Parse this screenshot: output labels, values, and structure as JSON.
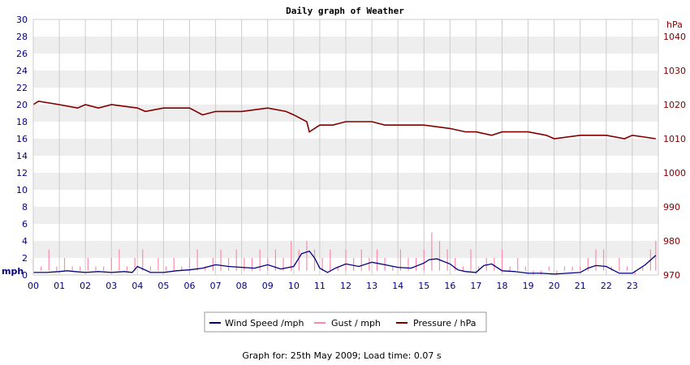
{
  "chart_data": {
    "type": "line",
    "title": "Daily graph of Weather",
    "footer": "Graph for: 25th May 2009; Load time: 0.07 s",
    "left_axis": {
      "unit": "mph",
      "min": 0,
      "max": 30,
      "ticks": [
        "0",
        "2",
        "4",
        "6",
        "8",
        "10",
        "12",
        "14",
        "16",
        "18",
        "20",
        "22",
        "24",
        "26",
        "28",
        "30"
      ]
    },
    "right_axis": {
      "unit": "hPa",
      "min": 970,
      "max": 1045,
      "ticks": [
        "970",
        "980",
        "990",
        "1000",
        "1010",
        "1020",
        "1030",
        "1040"
      ]
    },
    "x_ticks": [
      "00",
      "01",
      "02",
      "03",
      "04",
      "05",
      "06",
      "07",
      "08",
      "09",
      "10",
      "11",
      "12",
      "13",
      "14",
      "15",
      "16",
      "17",
      "18",
      "19",
      "20",
      "21",
      "22",
      "23"
    ],
    "x_range": [
      0,
      24
    ],
    "grid": true,
    "legend_position": "bottom",
    "series": [
      {
        "name": "Wind Speed /mph",
        "color": "#000080",
        "axis": "left",
        "x": [
          0,
          0.5,
          1,
          1.3,
          1.6,
          2,
          2.5,
          3,
          3.5,
          3.8,
          4,
          4.5,
          5,
          5.5,
          6,
          6.5,
          7,
          7.5,
          8,
          8.5,
          9,
          9.5,
          10,
          10.3,
          10.6,
          10.8,
          11,
          11.3,
          11.6,
          12,
          12.5,
          13,
          13.5,
          14,
          14.5,
          15,
          15.2,
          15.5,
          16,
          16.3,
          16.6,
          17,
          17.3,
          17.6,
          18,
          18.5,
          19,
          19.5,
          20,
          20.5,
          21,
          21.3,
          21.6,
          22,
          22.5,
          23,
          23.5,
          23.9
        ],
        "values": [
          0.3,
          0.3,
          0.4,
          0.5,
          0.4,
          0.3,
          0.4,
          0.3,
          0.4,
          0.3,
          1.0,
          0.3,
          0.3,
          0.5,
          0.6,
          0.8,
          1.2,
          1.0,
          0.9,
          0.8,
          1.2,
          0.7,
          1.0,
          2.5,
          2.8,
          2.0,
          0.8,
          0.3,
          0.8,
          1.3,
          1.0,
          1.5,
          1.2,
          0.9,
          0.8,
          1.4,
          1.8,
          1.9,
          1.3,
          0.6,
          0.4,
          0.3,
          1.1,
          1.3,
          0.5,
          0.4,
          0.2,
          0.2,
          0.1,
          0.2,
          0.3,
          0.8,
          1.1,
          1.0,
          0.2,
          0.2,
          1.2,
          2.3
        ]
      },
      {
        "name": "Gust / mph",
        "color": "#ff88aa",
        "axis": "left",
        "baseline": 0.5,
        "x": [
          0,
          0.3,
          0.6,
          0.9,
          1.2,
          1.5,
          1.8,
          2.1,
          2.4,
          2.7,
          3.0,
          3.3,
          3.6,
          3.9,
          4.2,
          4.5,
          4.8,
          5.1,
          5.4,
          5.7,
          6.0,
          6.3,
          6.6,
          6.9,
          7.2,
          7.5,
          7.8,
          8.1,
          8.4,
          8.7,
          9.0,
          9.3,
          9.6,
          9.9,
          10.2,
          10.5,
          10.8,
          11.1,
          11.4,
          11.7,
          12.0,
          12.3,
          12.6,
          12.9,
          13.2,
          13.5,
          13.8,
          14.1,
          14.4,
          14.7,
          15.0,
          15.3,
          15.6,
          15.9,
          16.2,
          16.5,
          16.8,
          17.1,
          17.4,
          17.7,
          18.0,
          18.3,
          18.6,
          18.9,
          19.2,
          19.5,
          19.8,
          20.1,
          20.4,
          20.7,
          21.0,
          21.3,
          21.6,
          21.9,
          22.2,
          22.5,
          22.8,
          23.1,
          23.4,
          23.7,
          23.9
        ],
        "values": [
          2,
          1,
          3,
          1,
          2,
          1,
          1,
          2,
          1,
          1,
          2,
          3,
          1,
          2,
          3,
          1,
          2,
          1,
          2,
          1,
          2,
          3,
          1,
          2,
          3,
          2,
          3,
          2,
          2,
          3,
          2,
          3,
          2,
          4,
          3,
          4,
          3,
          2,
          3,
          1,
          3,
          2,
          3,
          2,
          3,
          2,
          1,
          3,
          2,
          2,
          3,
          5,
          4,
          3,
          2,
          1,
          3,
          1,
          2,
          2,
          3,
          1,
          2,
          1,
          0,
          0,
          1,
          0,
          1,
          1,
          1,
          2,
          3,
          3,
          1,
          2,
          1,
          0,
          1,
          3,
          4
        ]
      },
      {
        "name": "Pressure / hPa",
        "color": "#800000",
        "axis": "right",
        "x": [
          0,
          0.2,
          1,
          1.7,
          2,
          2.5,
          3,
          4,
          4.3,
          5,
          6,
          6.5,
          7,
          8,
          9,
          9.7,
          10,
          10.5,
          10.6,
          11,
          11.5,
          12,
          13,
          13.5,
          14,
          15,
          16,
          16.6,
          17,
          17.6,
          18,
          18.5,
          19,
          19.7,
          20,
          21,
          22,
          22.7,
          23,
          23.9
        ],
        "values": [
          1020,
          1021,
          1020,
          1019,
          1020,
          1019,
          1020,
          1019,
          1018,
          1019,
          1019,
          1017,
          1018,
          1018,
          1019,
          1018,
          1017,
          1015,
          1012,
          1014,
          1014,
          1015,
          1015,
          1014,
          1014,
          1014,
          1013,
          1012,
          1012,
          1011,
          1012,
          1012,
          1012,
          1011,
          1010,
          1011,
          1011,
          1010,
          1011,
          1010
        ]
      }
    ]
  }
}
